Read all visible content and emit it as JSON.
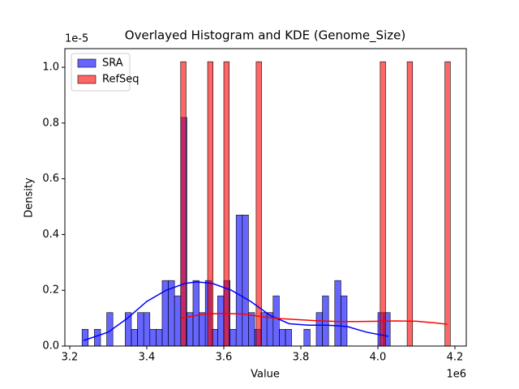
{
  "chart_data": {
    "type": "histogram",
    "title": "Overlayed Histogram and KDE (Genome_Size)",
    "x_label": "Value",
    "y_label": "Density",
    "x_offset": "1e6",
    "y_offset": "1e-5",
    "xlim": [
      3.1874,
      4.2295
    ],
    "ylim": [
      0,
      1.067
    ],
    "xticks": [
      3.2,
      3.4,
      3.6,
      3.8,
      {
        "value": 4,
        "label": "4.0"
      },
      4.2
    ],
    "yticks": [
      {
        "value": 0,
        "label": "0.0"
      },
      0.2,
      0.4,
      0.6,
      0.8,
      {
        "value": 1,
        "label": "1.0"
      }
    ],
    "legend": "upper left",
    "series": [
      {
        "name": "SRA",
        "color": "#0000ff",
        "bins": [
          3.232,
          3.248,
          3.264,
          3.28,
          3.296,
          3.312,
          3.328,
          3.344,
          3.36,
          3.376,
          3.392,
          3.408,
          3.424,
          3.44,
          3.456,
          3.472,
          3.488,
          3.504,
          3.52,
          3.536,
          3.552,
          3.568,
          3.584,
          3.6,
          3.616,
          3.632,
          3.648,
          3.664,
          3.68,
          3.696,
          3.712,
          3.728,
          3.744,
          3.76,
          3.776,
          3.792,
          3.808,
          3.824,
          3.84,
          3.856,
          3.872,
          3.888,
          3.904,
          3.92,
          3.936,
          3.952,
          3.968,
          3.984,
          4.0,
          4.016,
          4.032
        ],
        "values": [
          0.06,
          0,
          0.06,
          0,
          0.12,
          0,
          0,
          0.12,
          0.06,
          0.12,
          0.12,
          0.06,
          0.06,
          0.235,
          0.235,
          0.18,
          0.82,
          0.12,
          0.235,
          0.12,
          0.235,
          0.06,
          0.18,
          0.235,
          0.06,
          0.47,
          0.47,
          0.12,
          0.06,
          0.12,
          0.12,
          0.18,
          0.06,
          0.06,
          0,
          0,
          0.06,
          0,
          0.12,
          0.18,
          0,
          0.235,
          0.18,
          0,
          0,
          0,
          0,
          0,
          0.12,
          0.12
        ],
        "kde": {
          "x": [
            3.236,
            3.3,
            3.35,
            3.4,
            3.45,
            3.5,
            3.53,
            3.57,
            3.62,
            3.67,
            3.72,
            3.77,
            3.82,
            3.87,
            3.92,
            3.97,
            4.027
          ],
          "y": [
            0.02,
            0.05,
            0.1,
            0.16,
            0.2,
            0.225,
            0.23,
            0.225,
            0.2,
            0.16,
            0.11,
            0.08,
            0.075,
            0.075,
            0.07,
            0.05,
            0.035
          ]
        }
      },
      {
        "name": "RefSeq",
        "color": "#ff0000",
        "bins": [
          3.488,
          3.502,
          3.516,
          3.53,
          3.544,
          3.558,
          3.572,
          3.586,
          3.6,
          3.614,
          3.628,
          3.642,
          3.656,
          3.67,
          3.684,
          3.698,
          3.712,
          3.726,
          3.74,
          3.754,
          3.768,
          3.782,
          3.796,
          3.81,
          3.824,
          3.838,
          3.852,
          3.866,
          3.88,
          3.894,
          3.908,
          3.922,
          3.936,
          3.95,
          3.964,
          3.978,
          3.992,
          4.006,
          4.02,
          4.034,
          4.048,
          4.062,
          4.076,
          4.09,
          4.104,
          4.118,
          4.132,
          4.146,
          4.16,
          4.174,
          4.188
        ],
        "values": [
          1.02,
          0,
          0,
          0,
          0,
          1.02,
          0,
          0,
          1.02,
          0,
          0,
          0,
          0,
          0,
          1.02,
          0,
          0,
          0,
          0,
          0,
          0,
          0,
          0,
          0,
          0,
          0,
          0,
          0,
          0,
          0,
          0,
          0,
          0,
          0,
          0,
          0,
          0,
          1.02,
          0,
          0,
          0,
          0,
          1.02,
          0,
          0,
          0,
          0,
          0,
          0,
          1.02
        ],
        "kde": {
          "x": [
            3.49,
            3.55,
            3.6,
            3.65,
            3.7,
            3.75,
            3.8,
            3.85,
            3.9,
            3.95,
            4.0,
            4.05,
            4.1,
            4.15,
            4.18
          ],
          "y": [
            0.1,
            0.115,
            0.117,
            0.115,
            0.105,
            0.098,
            0.094,
            0.09,
            0.088,
            0.088,
            0.089,
            0.09,
            0.089,
            0.083,
            0.078
          ]
        }
      }
    ]
  }
}
